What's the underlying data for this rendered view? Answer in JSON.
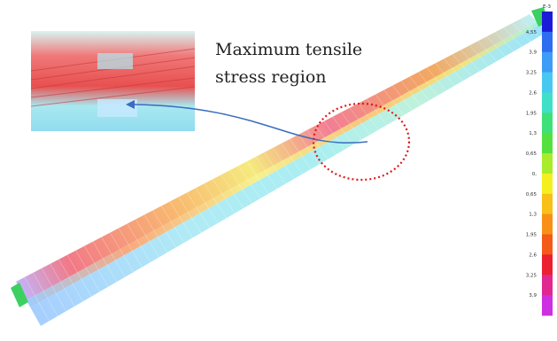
{
  "annotation": {
    "lines": [
      "Maximum tensile",
      "stress region"
    ]
  },
  "legend": {
    "title": "E-3",
    "labels": [
      "4,55",
      "3,9",
      "3,25",
      "2,6",
      "1,95",
      "1,3",
      "0,65",
      "0,",
      "0,65",
      "1,3",
      "1,95",
      "2,6",
      "3,25",
      "3,9"
    ],
    "colors": [
      "#1c1cd8",
      "#2f6cf0",
      "#3d9cf5",
      "#47c8f0",
      "#3fe0c8",
      "#3ee07a",
      "#55e040",
      "#a8ec2c",
      "#f4f020",
      "#f8c018",
      "#f89018",
      "#f45a18",
      "#ec2030",
      "#e02890",
      "#cc30e0"
    ]
  }
}
